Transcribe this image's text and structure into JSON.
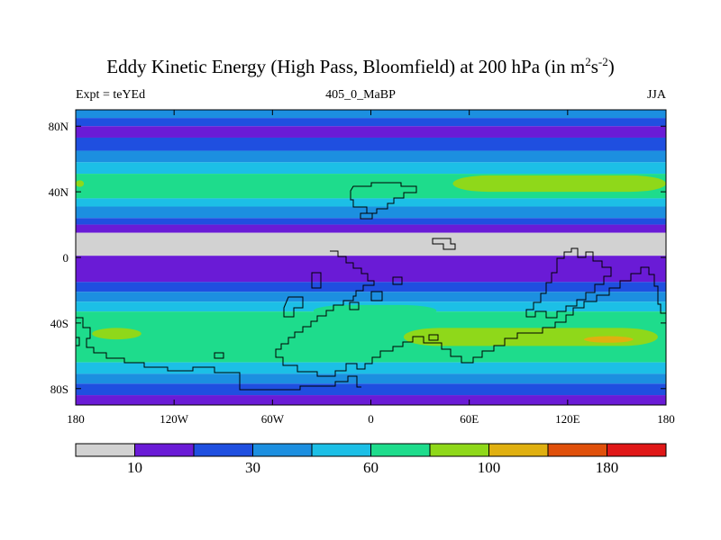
{
  "title": {
    "main": "Eddy Kinetic Energy (High Pass, Bloomfield) at 200 hPa (in m",
    "sup1": "2",
    "mid": "s",
    "sup2": "-2",
    "end": ")"
  },
  "left_label": "Expt = teYEd",
  "center_label": "405_0_MaBP",
  "right_label": "JJA",
  "chart_data": {
    "type": "heatmap",
    "title": "Eddy Kinetic Energy (High Pass, Bloomfield) at 200 hPa (in m^2s^-2)",
    "experiment": "teYEd",
    "dataset": "405_0_MaBP",
    "season": "JJA",
    "x_ticks": [
      "180",
      "120W",
      "60W",
      "0",
      "60E",
      "120E",
      "180"
    ],
    "y_ticks": [
      "80N",
      "40N",
      "0",
      "40S",
      "80S"
    ],
    "xlim": [
      -180,
      180
    ],
    "ylim": [
      -90,
      90
    ],
    "levels": [
      10,
      20,
      30,
      45,
      60,
      80,
      100,
      140,
      180
    ],
    "colorbar_labels": [
      "10",
      "30",
      "60",
      "100",
      "180"
    ],
    "colors": [
      "#d2d2d2",
      "#6a1bd6",
      "#1f4fe0",
      "#1c8fe0",
      "#1cbfe6",
      "#1edc8c",
      "#8fd81a",
      "#e0b010",
      "#e0500a",
      "#e01818"
    ],
    "zonal_bands": [
      {
        "lat_range": [
          85,
          90
        ],
        "level": 3
      },
      {
        "lat_range": [
          80,
          85
        ],
        "level": 2
      },
      {
        "lat_range": [
          73,
          80
        ],
        "level": 1
      },
      {
        "lat_range": [
          65,
          73
        ],
        "level": 2
      },
      {
        "lat_range": [
          58,
          65
        ],
        "level": 3
      },
      {
        "lat_range": [
          51,
          58
        ],
        "level": 4
      },
      {
        "lat_range": [
          36,
          51
        ],
        "level": 5
      },
      {
        "lat_range": [
          31,
          36
        ],
        "level": 4
      },
      {
        "lat_range": [
          24,
          31
        ],
        "level": 3
      },
      {
        "lat_range": [
          20,
          24
        ],
        "level": 2
      },
      {
        "lat_range": [
          15,
          20
        ],
        "level": 1
      },
      {
        "lat_range": [
          1,
          15
        ],
        "level": 0
      },
      {
        "lat_range": [
          -15,
          1
        ],
        "level": 1
      },
      {
        "lat_range": [
          -21,
          -15
        ],
        "level": 2
      },
      {
        "lat_range": [
          -27,
          -21
        ],
        "level": 3
      },
      {
        "lat_range": [
          -33,
          -27
        ],
        "level": 4
      },
      {
        "lat_range": [
          -64,
          -33
        ],
        "level": 5
      },
      {
        "lat_range": [
          -71,
          -64
        ],
        "level": 4
      },
      {
        "lat_range": [
          -77,
          -71
        ],
        "level": 3
      },
      {
        "lat_range": [
          -84,
          -77
        ],
        "level": 2
      },
      {
        "lat_range": [
          -90,
          -84
        ],
        "level": 1
      }
    ],
    "maxima": [
      {
        "region": "North Pacific jet",
        "lon_range": [
          50,
          180
        ],
        "lat_range": [
          40,
          50
        ],
        "level": 6
      },
      {
        "region": "North Atlantic west",
        "lon_range": [
          -180,
          -175
        ],
        "lat_range": [
          43,
          47
        ],
        "level": 6
      },
      {
        "region": "South Atlantic",
        "lon_range": [
          -35,
          40
        ],
        "lat_range": [
          -36,
          -29
        ],
        "level": 5
      },
      {
        "region": "South Pacific west",
        "lon_range": [
          -170,
          -140
        ],
        "lat_range": [
          -50,
          -43
        ],
        "level": 6
      },
      {
        "region": "South Indian",
        "lon_range": [
          20,
          175
        ],
        "lat_range": [
          -54,
          -43
        ],
        "level": 6
      },
      {
        "region": "South Indian core",
        "lon_range": [
          130,
          160
        ],
        "lat_range": [
          -52,
          -48
        ],
        "level": 7
      },
      {
        "region": "South Indian core 2",
        "lon_range": [
          80,
          110
        ],
        "lat_range": [
          -50,
          -47
        ],
        "level": 6
      }
    ]
  }
}
